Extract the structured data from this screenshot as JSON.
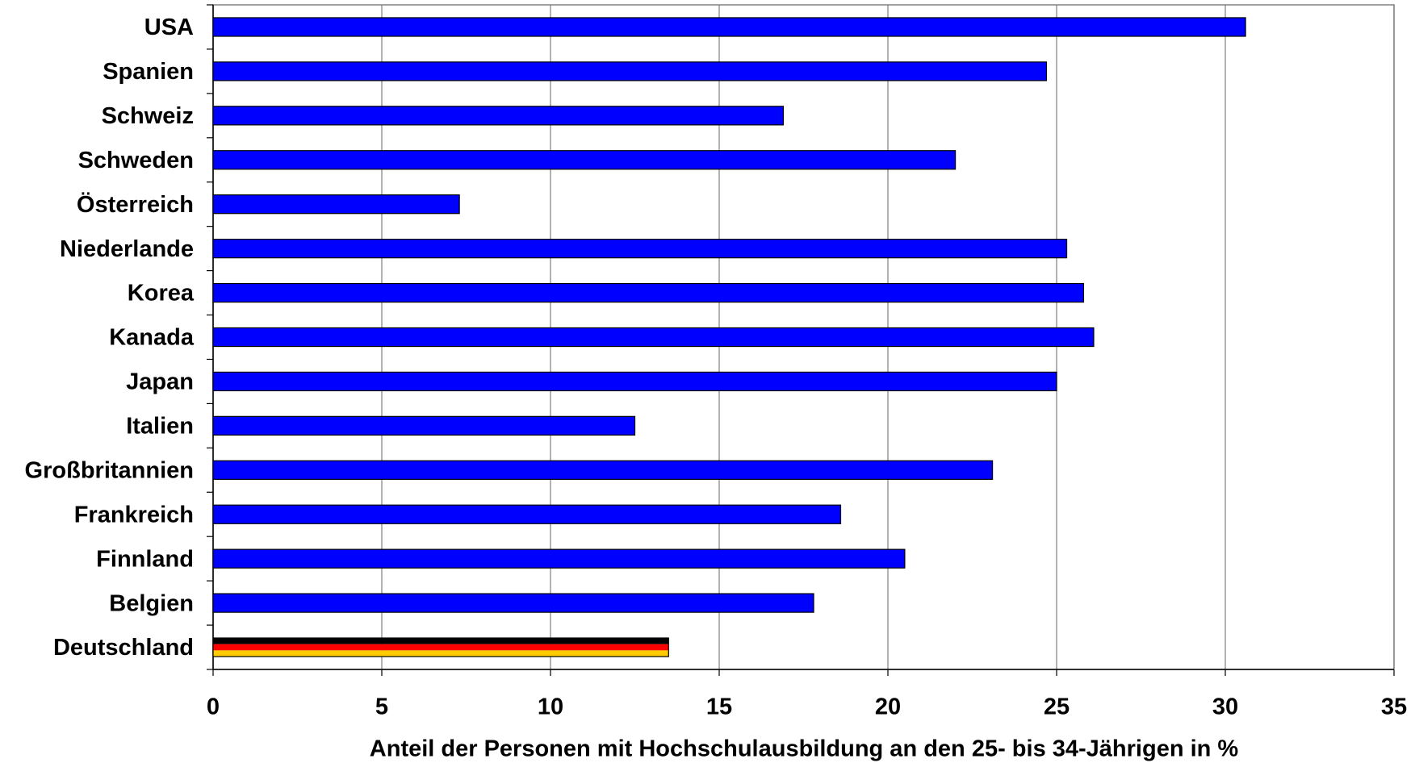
{
  "chart_data": {
    "type": "barh",
    "xlabel": "Anteil der Personen mit Hochschulausbildung an den 25- bis 34-Jährigen in %",
    "categories": [
      "USA",
      "Spanien",
      "Schweiz",
      "Schweden",
      "Österreich",
      "Niederlande",
      "Korea",
      "Kanada",
      "Japan",
      "Italien",
      "Großbritannien",
      "Frankreich",
      "Finnland",
      "Belgien",
      "Deutschland"
    ],
    "values": [
      30.6,
      24.7,
      16.9,
      22.0,
      7.3,
      25.3,
      25.8,
      26.1,
      25.0,
      12.5,
      23.1,
      18.6,
      20.5,
      17.8,
      13.5
    ],
    "colors": [
      "#0000ff",
      "#0000ff",
      "#0000ff",
      "#0000ff",
      "#0000ff",
      "#0000ff",
      "#0000ff",
      "#0000ff",
      "#0000ff",
      "#0000ff",
      "#0000ff",
      "#0000ff",
      "#0000ff",
      "#0000ff",
      [
        "#000000",
        "#ff0000",
        "#ffcc00"
      ]
    ],
    "xlim": [
      0,
      35
    ],
    "xticks": [
      0,
      5,
      10,
      15,
      20,
      25,
      30,
      35
    ],
    "grid": true
  }
}
